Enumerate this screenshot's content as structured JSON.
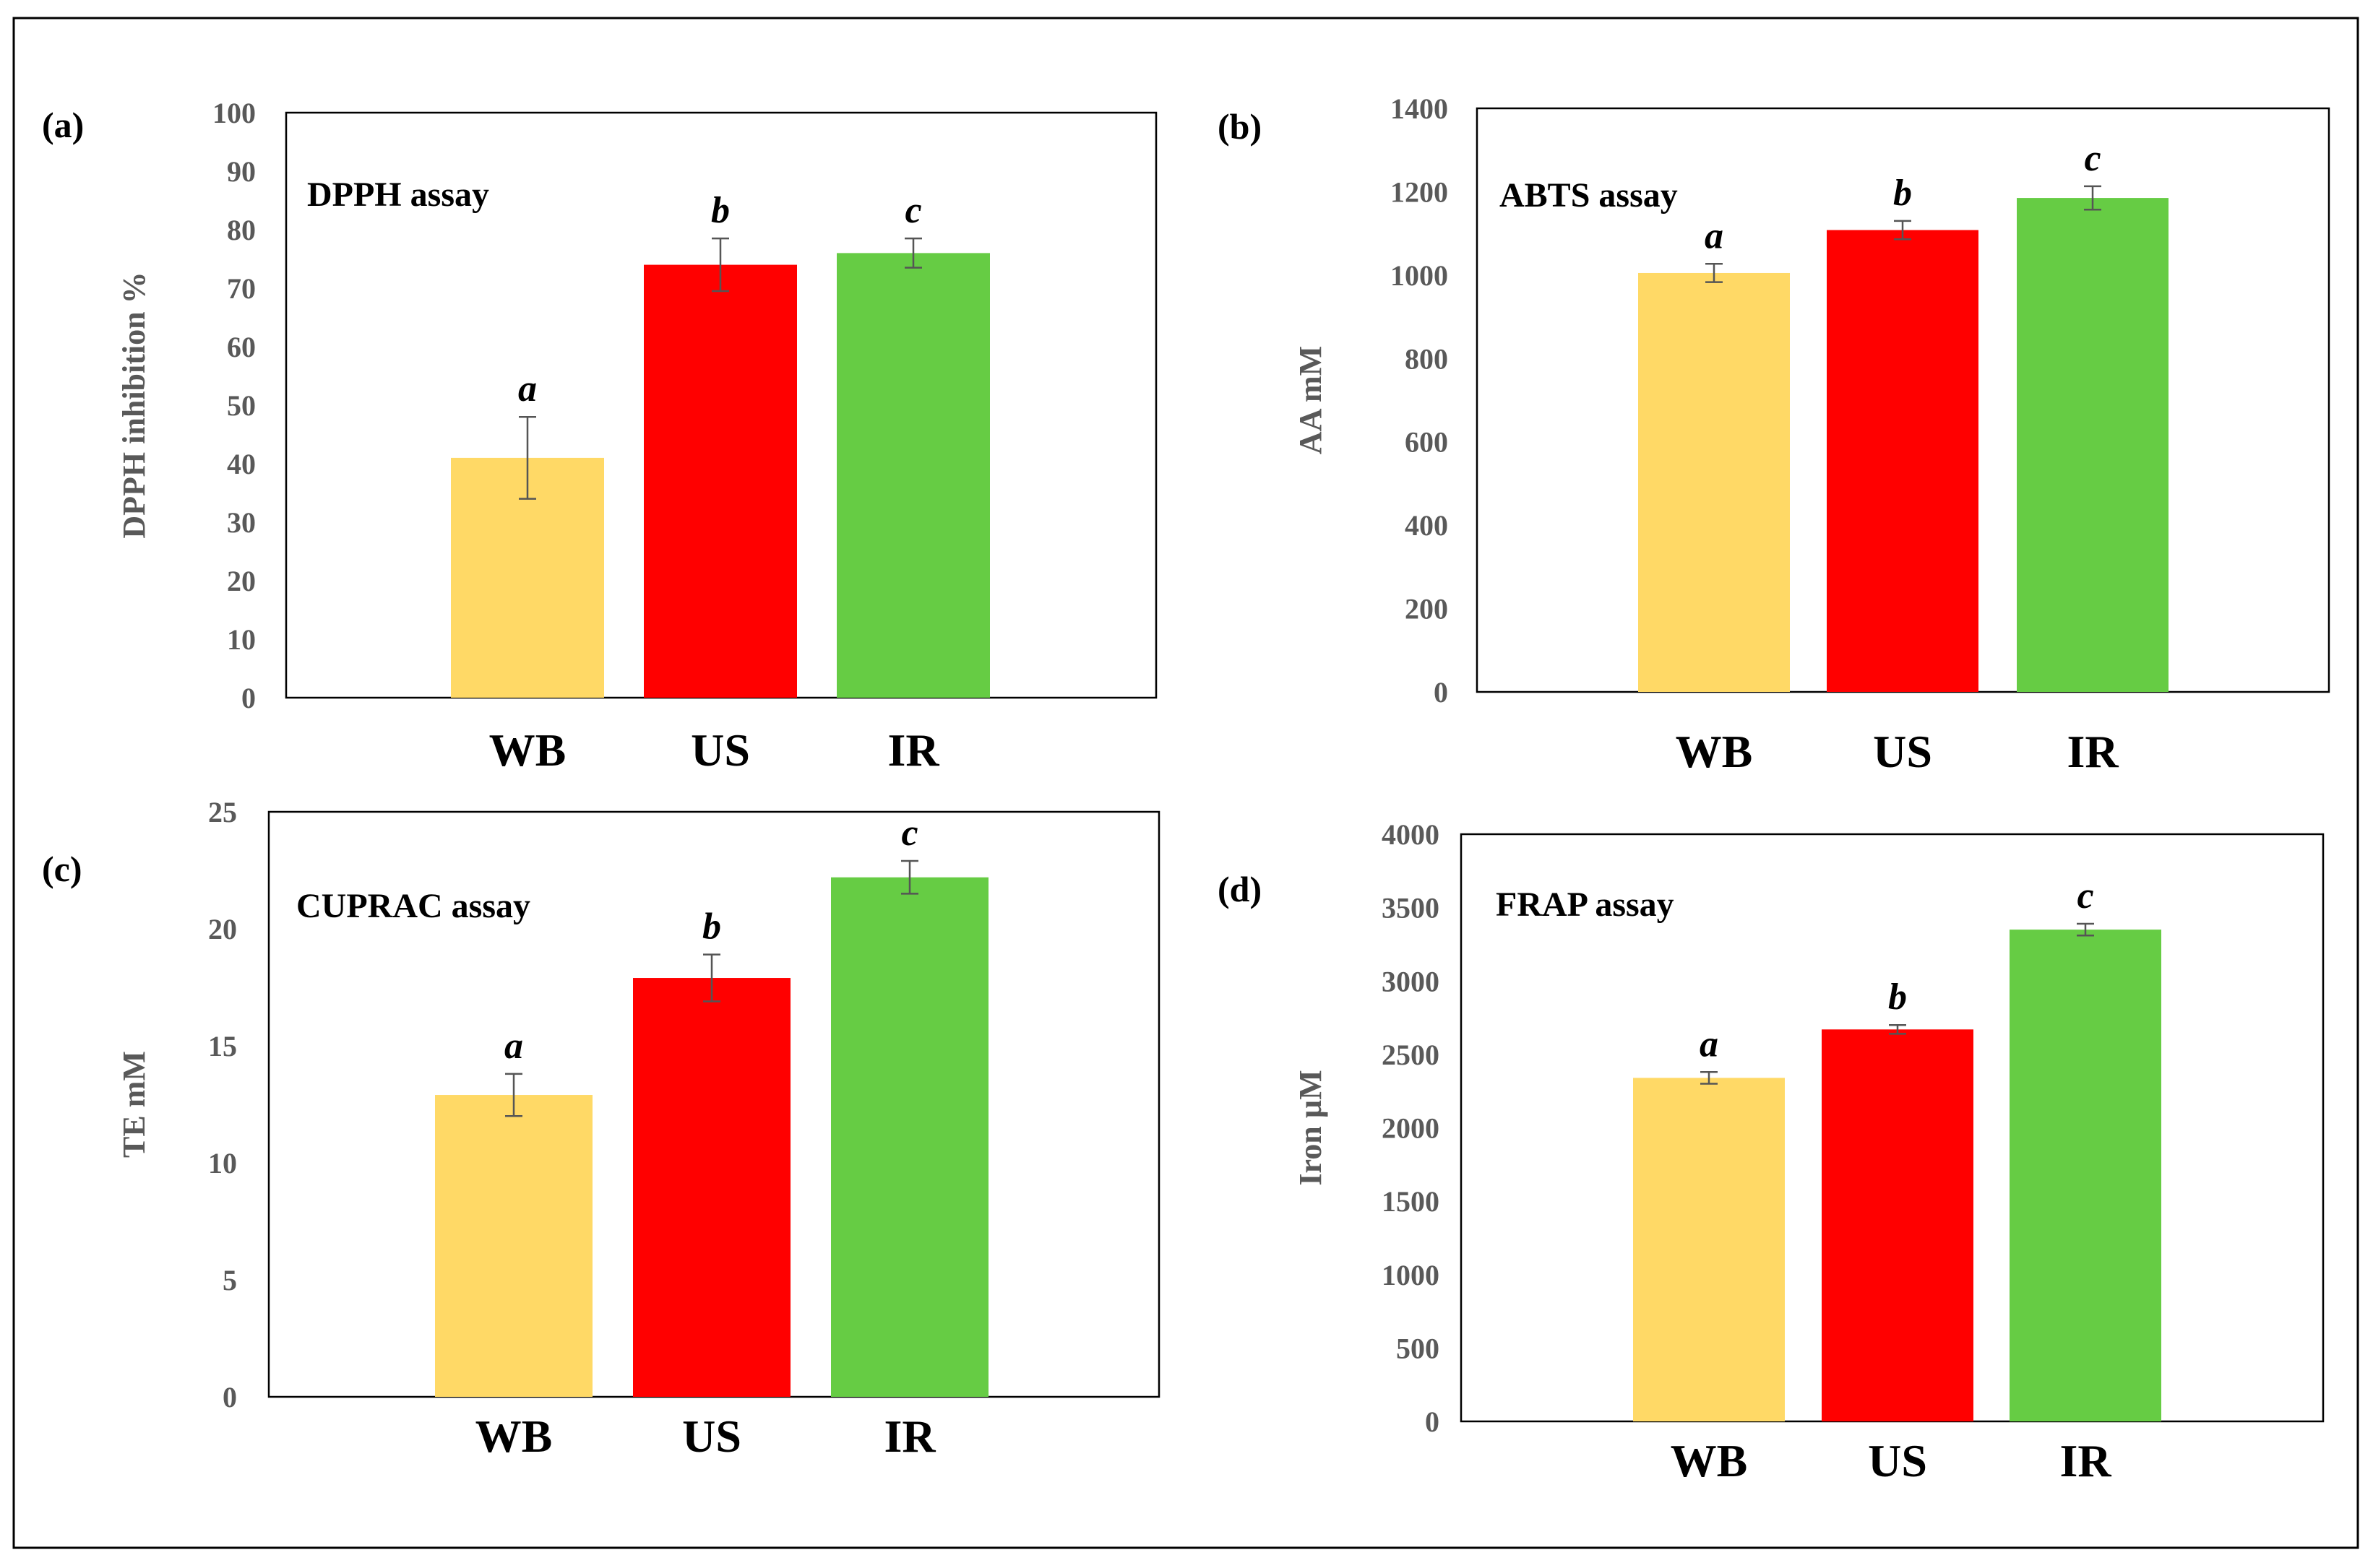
{
  "chart_data": [
    {
      "type": "bar",
      "panel": "(a)",
      "title": "DPPH assay",
      "ylabel": "DPPH inhibition %",
      "xlabel": "",
      "categories": [
        "WB",
        "US",
        "IR"
      ],
      "values": [
        41,
        74,
        76
      ],
      "errors": [
        7,
        4.5,
        2.5
      ],
      "significance": [
        "a",
        "b",
        "c"
      ],
      "colors": [
        "#FFD966",
        "#FF0000",
        "#66CC44"
      ],
      "ylim": [
        0,
        100
      ],
      "yticks": [
        0,
        10,
        20,
        30,
        40,
        50,
        60,
        70,
        80,
        90,
        100
      ]
    },
    {
      "type": "bar",
      "panel": "(b)",
      "title": "ABTS assay",
      "ylabel": "AA mM",
      "xlabel": "",
      "categories": [
        "WB",
        "US",
        "IR"
      ],
      "values": [
        1005,
        1108,
        1185
      ],
      "errors": [
        22,
        22,
        28
      ],
      "significance": [
        "a",
        "b",
        "c"
      ],
      "colors": [
        "#FFD966",
        "#FF0000",
        "#66CC44"
      ],
      "ylim": [
        0,
        1400
      ],
      "yticks": [
        0,
        200,
        400,
        600,
        800,
        1000,
        1200,
        1400
      ]
    },
    {
      "type": "bar",
      "panel": "(c)",
      "title": "CUPRAC assay",
      "ylabel": "TE mM",
      "xlabel": "",
      "categories": [
        "WB",
        "US",
        "IR"
      ],
      "values": [
        12.9,
        17.9,
        22.2
      ],
      "errors": [
        0.9,
        1.0,
        0.7
      ],
      "significance": [
        "a",
        "b",
        "c"
      ],
      "colors": [
        "#FFD966",
        "#FF0000",
        "#66CC44"
      ],
      "ylim": [
        0,
        25
      ],
      "yticks": [
        0,
        5,
        10,
        15,
        20,
        25
      ]
    },
    {
      "type": "bar",
      "panel": "(d)",
      "title": "FRAP assay",
      "ylabel": "Iron µM",
      "xlabel": "",
      "categories": [
        "WB",
        "US",
        "IR"
      ],
      "values": [
        2340,
        2670,
        3350
      ],
      "errors": [
        40,
        30,
        40
      ],
      "significance": [
        "a",
        "b",
        "c"
      ],
      "colors": [
        "#FFD966",
        "#FF0000",
        "#66CC44"
      ],
      "ylim": [
        0,
        4000
      ],
      "yticks": [
        0,
        500,
        1000,
        1500,
        2000,
        2500,
        3000,
        3500,
        4000
      ]
    }
  ]
}
